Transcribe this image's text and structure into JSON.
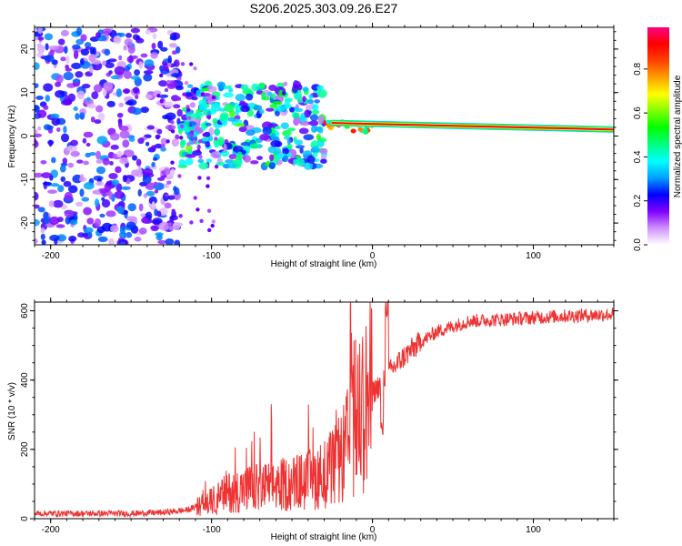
{
  "title": "S206.2025.303.09.26.E27",
  "chart_data": [
    {
      "type": "heatmap",
      "title": "S206.2025.303.09.26.E27",
      "xlabel": "Height of straight line (km)",
      "ylabel": "Frequency (Hz)",
      "xlim": [
        -210,
        150
      ],
      "ylim": [
        -25,
        25
      ],
      "x_ticks": [
        -200,
        -100,
        0,
        100
      ],
      "y_ticks": [
        -20,
        -10,
        0,
        10,
        20
      ],
      "colorbar": {
        "label": "Normalized spectral amplitude",
        "range": [
          0,
          0.99
        ],
        "ticks": [
          0.0,
          0.2,
          0.4,
          0.6,
          0.8
        ],
        "tick_labels": [
          "0.0",
          "0.2",
          "0.4",
          "0.6",
          "0.8"
        ],
        "colors": [
          "#ffffff",
          "#d090ff",
          "#8000ff",
          "#0000ff",
          "#00a0ff",
          "#00ffff",
          "#00ff80",
          "#00ff00",
          "#80ff00",
          "#ffff00",
          "#ffa000",
          "#ff4000",
          "#ff0000",
          "#ff0080"
        ]
      },
      "tone_line": {
        "x_start": -25,
        "x_end": 150,
        "freq_start": 3,
        "freq_end": 1.5,
        "amplitude": 0.95
      },
      "scatter_regions": [
        {
          "x_range": [
            -210,
            -120
          ],
          "f_range": [
            -25,
            25
          ],
          "amplitude": 0.25
        },
        {
          "x_range": [
            -120,
            -30
          ],
          "f_range": [
            -7,
            12
          ],
          "amplitude": 0.4
        }
      ]
    },
    {
      "type": "line",
      "xlabel": "Height of straight line (km)",
      "ylabel": "SNR (10 * v/v)",
      "xlim": [
        -210,
        150
      ],
      "ylim": [
        0,
        625
      ],
      "x_ticks": [
        -200,
        -100,
        0,
        100
      ],
      "y_ticks": [
        0,
        200,
        400,
        600
      ],
      "color": "#ee3333",
      "series": [
        {
          "name": "SNR",
          "x": [
            -210,
            -180,
            -150,
            -130,
            -115,
            -100,
            -90,
            -80,
            -60,
            -40,
            -30,
            -20,
            -15,
            -10,
            -5,
            0,
            10,
            20,
            30,
            40,
            60,
            80,
            100,
            120,
            150
          ],
          "values": [
            15,
            15,
            15,
            18,
            25,
            50,
            75,
            85,
            95,
            110,
            130,
            160,
            220,
            300,
            330,
            360,
            420,
            470,
            510,
            540,
            570,
            575,
            580,
            585,
            590
          ]
        }
      ]
    }
  ]
}
